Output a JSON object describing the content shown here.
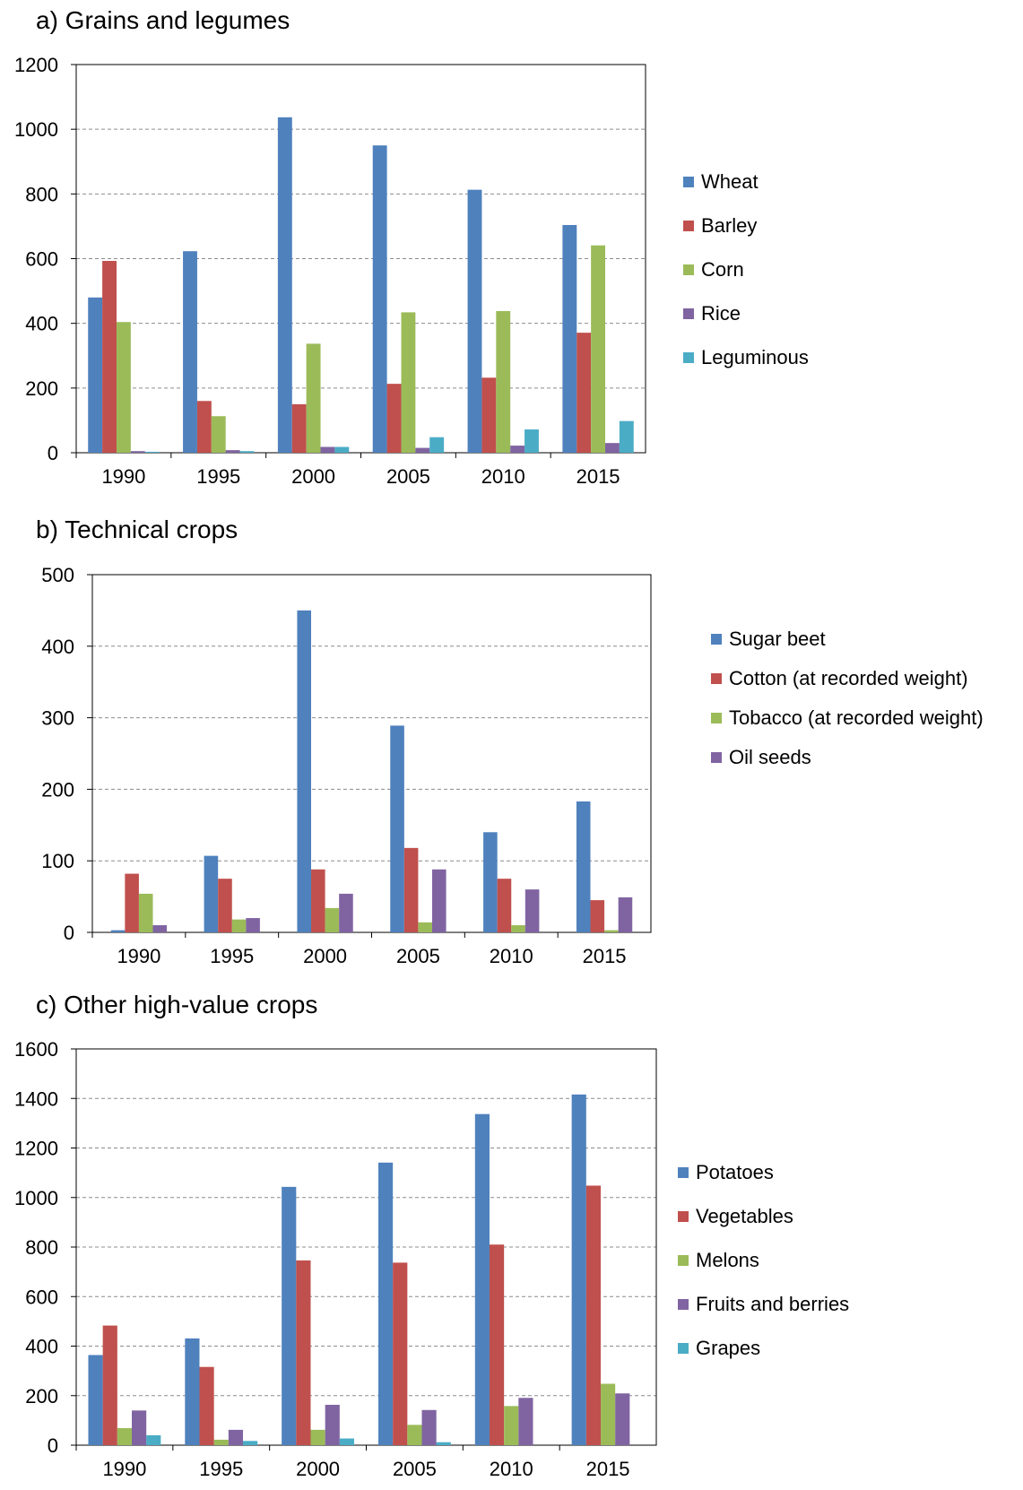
{
  "chart_data": [
    {
      "type": "bar",
      "title": "a) Grains and legumes",
      "categories": [
        "1990",
        "1995",
        "2000",
        "2005",
        "2010",
        "2015"
      ],
      "ylim": [
        0,
        1200
      ],
      "yticks": [
        0,
        200,
        400,
        600,
        800,
        1000,
        1200
      ],
      "grid": true,
      "legend_position": "right",
      "series": [
        {
          "name": "Wheat",
          "color": "#4f81bd",
          "values": [
            480,
            623,
            1037,
            950,
            813,
            704
          ]
        },
        {
          "name": "Barley",
          "color": "#c0504d",
          "values": [
            593,
            160,
            150,
            213,
            232,
            371
          ]
        },
        {
          "name": "Corn",
          "color": "#9bbb59",
          "values": [
            404,
            113,
            337,
            434,
            438,
            641
          ]
        },
        {
          "name": "Rice",
          "color": "#8064a2",
          "values": [
            5,
            8,
            18,
            15,
            22,
            30
          ]
        },
        {
          "name": "Leguminous",
          "color": "#4bacc6",
          "values": [
            3,
            5,
            18,
            48,
            72,
            98
          ]
        }
      ]
    },
    {
      "type": "bar",
      "title": "b) Technical crops",
      "categories": [
        "1990",
        "1995",
        "2000",
        "2005",
        "2010",
        "2015"
      ],
      "ylim": [
        0,
        500
      ],
      "yticks": [
        0,
        100,
        200,
        300,
        400,
        500
      ],
      "grid": true,
      "legend_position": "right",
      "series": [
        {
          "name": "Sugar beet",
          "color": "#4f81bd",
          "values": [
            3,
            107,
            450,
            289,
            140,
            183
          ]
        },
        {
          "name": "Cotton (at recorded weight)",
          "color": "#c0504d",
          "values": [
            82,
            75,
            88,
            118,
            75,
            45
          ]
        },
        {
          "name": "Tobacco (at recorded weight)",
          "color": "#9bbb59",
          "values": [
            54,
            18,
            34,
            14,
            10,
            3
          ]
        },
        {
          "name": "Oil seeds",
          "color": "#8064a2",
          "values": [
            10,
            20,
            54,
            88,
            60,
            49
          ]
        }
      ]
    },
    {
      "type": "bar",
      "title": "c) Other high-value crops",
      "categories": [
        "1990",
        "1995",
        "2000",
        "2005",
        "2010",
        "2015"
      ],
      "ylim": [
        0,
        1600
      ],
      "yticks": [
        0,
        200,
        400,
        600,
        800,
        1000,
        1200,
        1400,
        1600
      ],
      "grid": true,
      "legend_position": "right",
      "series": [
        {
          "name": "Potatoes",
          "color": "#4f81bd",
          "values": [
            364,
            431,
            1043,
            1141,
            1337,
            1416
          ]
        },
        {
          "name": "Vegetables",
          "color": "#c0504d",
          "values": [
            483,
            316,
            746,
            737,
            810,
            1048
          ]
        },
        {
          "name": "Melons",
          "color": "#9bbb59",
          "values": [
            69,
            22,
            62,
            82,
            158,
            248
          ]
        },
        {
          "name": "Fruits and berries",
          "color": "#8064a2",
          "values": [
            140,
            62,
            163,
            142,
            191,
            209
          ]
        },
        {
          "name": "Grapes",
          "color": "#4bacc6",
          "values": [
            40,
            17,
            27,
            12,
            0,
            0
          ]
        }
      ]
    }
  ]
}
